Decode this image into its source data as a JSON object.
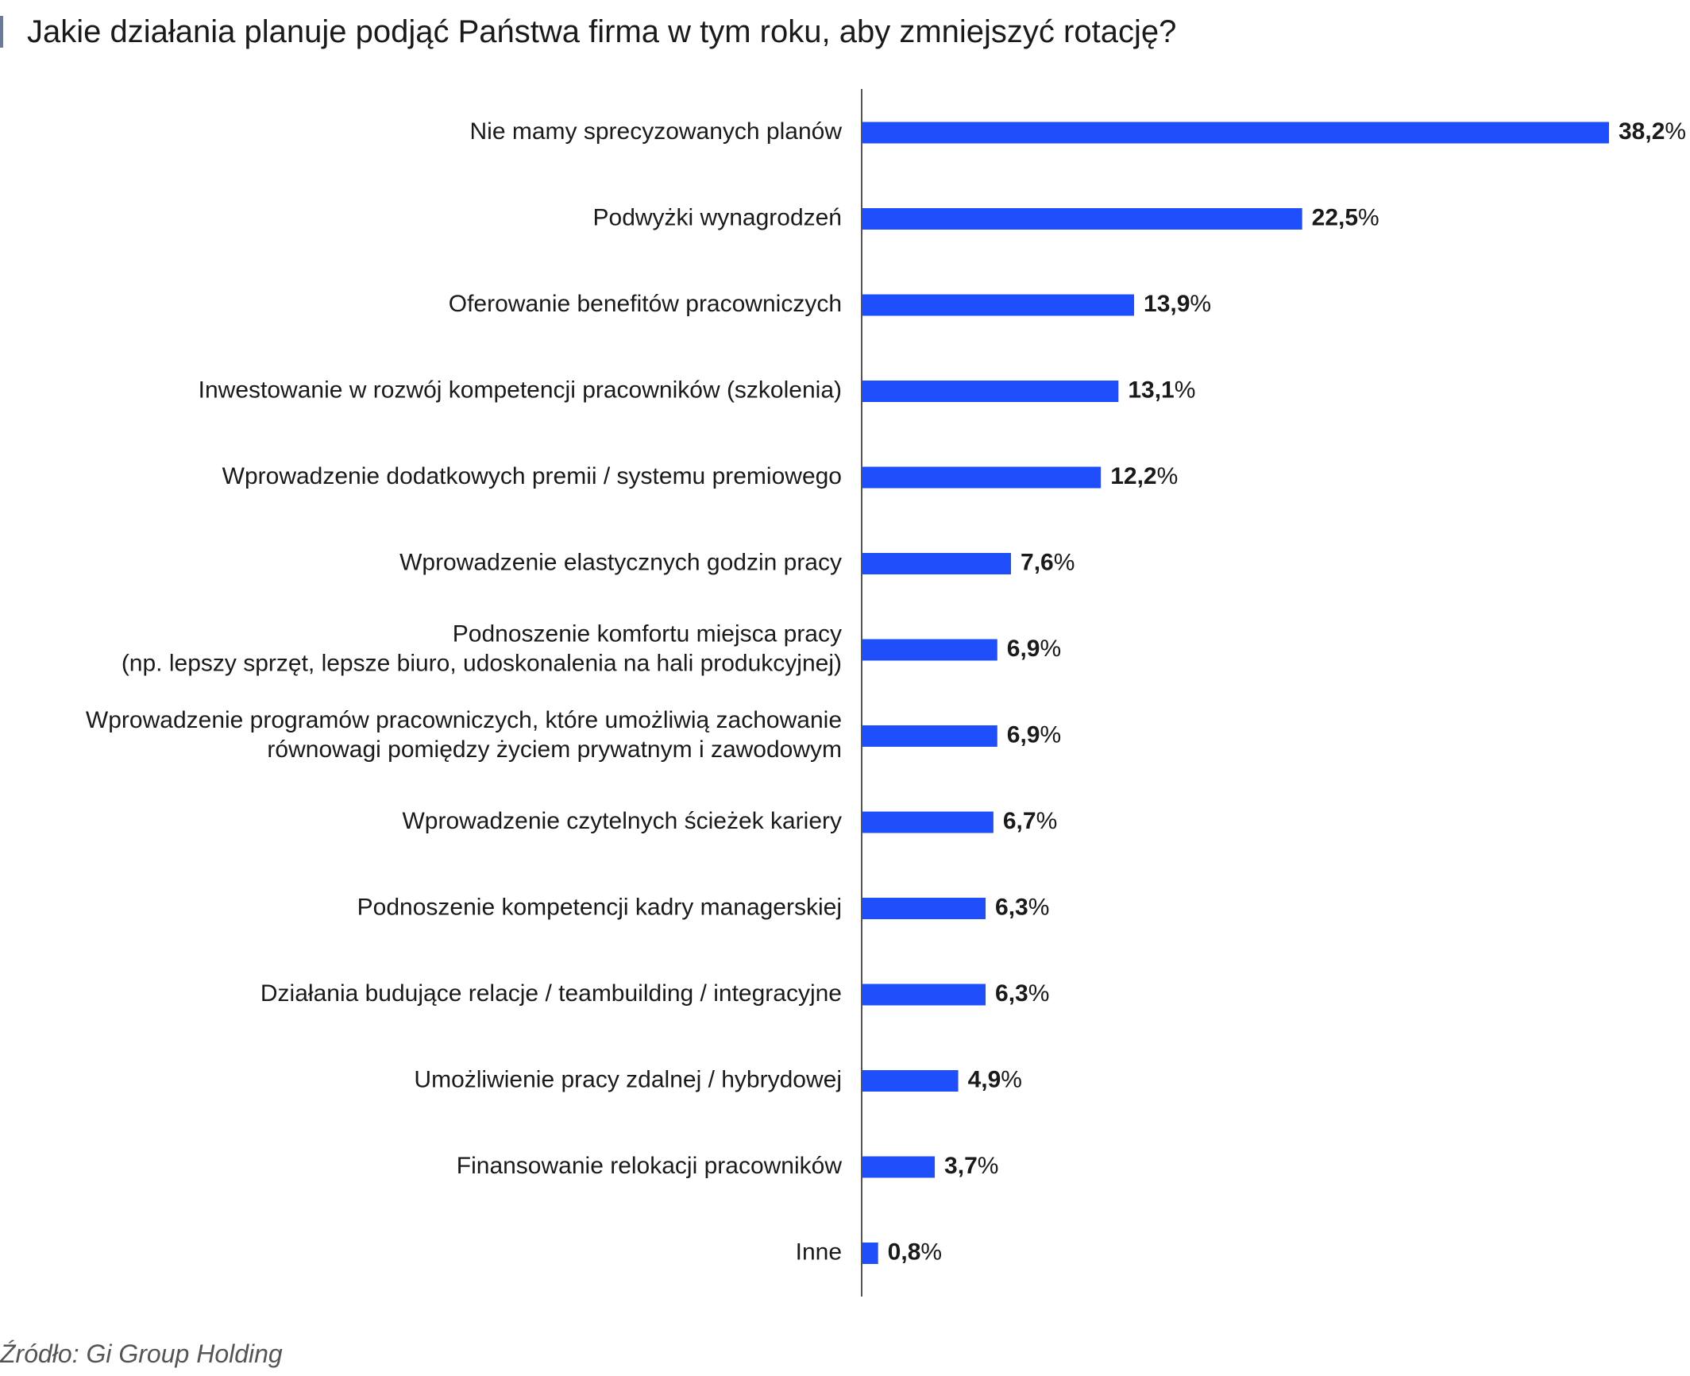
{
  "chart_data": {
    "type": "bar",
    "orientation": "horizontal",
    "title": "Jakie działania planuje podjąć Państwa firma w tym roku, aby zmniejszyć rotację?",
    "categories": [
      [
        "Nie mamy sprecyzowanych planów"
      ],
      [
        "Podwyżki wynagrodzeń"
      ],
      [
        "Oferowanie benefitów pracowniczych"
      ],
      [
        "Inwestowanie w rozwój kompetencji pracowników (szkolenia)"
      ],
      [
        "Wprowadzenie dodatkowych premii / systemu premiowego"
      ],
      [
        "Wprowadzenie elastycznych godzin pracy"
      ],
      [
        "Podnoszenie komfortu miejsca pracy",
        "(np. lepszy sprzęt, lepsze biuro, udoskonalenia na hali produkcyjnej)"
      ],
      [
        "Wprowadzenie programów pracowniczych, które umożliwią zachowanie",
        "równowagi pomiędzy życiem prywatnym i zawodowym"
      ],
      [
        "Wprowadzenie czytelnych ścieżek kariery"
      ],
      [
        "Podnoszenie kompetencji kadry managerskiej"
      ],
      [
        "Działania budujące relacje / teambuilding / integracyjne"
      ],
      [
        "Umożliwienie pracy zdalnej / hybrydowej"
      ],
      [
        "Finansowanie relokacji pracowników"
      ],
      [
        "Inne"
      ]
    ],
    "values": [
      38.2,
      22.5,
      13.9,
      13.1,
      12.2,
      7.6,
      6.9,
      6.9,
      6.7,
      6.3,
      6.3,
      4.9,
      3.7,
      0.8
    ],
    "value_labels": [
      "38,2",
      "22,5",
      "13,9",
      "13,1",
      "12,2",
      "7,6",
      "6,9",
      "6,9",
      "6,7",
      "6,3",
      "6,3",
      "4,9",
      "3,7",
      "0,8"
    ],
    "unit": "%",
    "bar_color": "#1f4ffa",
    "axis_color": "#555555",
    "grid": false,
    "legend": "none"
  },
  "source": "Źródło: Gi Group Holding"
}
